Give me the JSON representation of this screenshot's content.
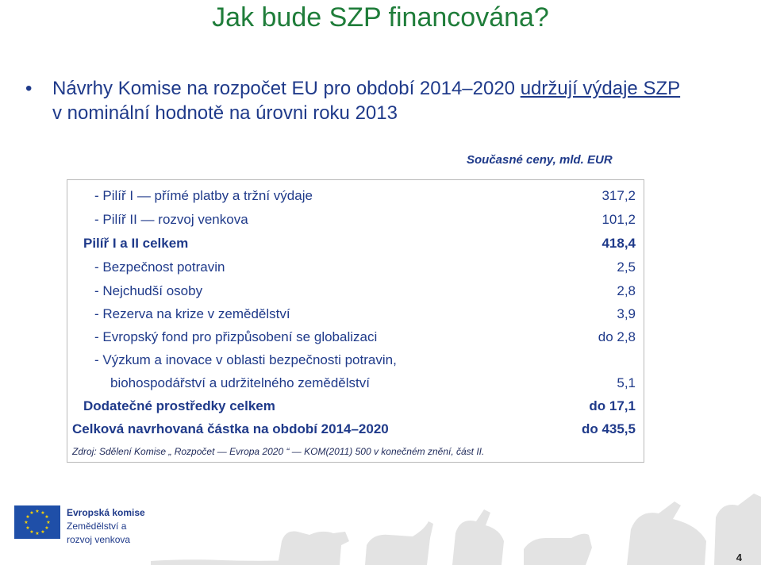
{
  "title": "Jak bude SZP financována?",
  "bullet": {
    "text_part1": "Návrhy Komise na rozpočet EU pro období 2014–2020 ",
    "text_underlined": "udržují výdaje SZP",
    "line2": "v nominální hodnotě na úrovni roku 2013"
  },
  "units": "Současné ceny, mld. EUR",
  "rows": [
    {
      "label": "- Pilíř I — přímé platby a tržní výdaje",
      "value": "317,2"
    },
    {
      "label": "- Pilíř II — rozvoj venkova",
      "value": "101,2"
    },
    {
      "label": "Pilíř I a II celkem",
      "value": "418,4"
    },
    {
      "label": "- Bezpečnost potravin",
      "value": "2,5"
    },
    {
      "label": "- Nejchudší osoby",
      "value": "2,8"
    },
    {
      "label": "- Rezerva na krize v zemědělství",
      "value": "3,9"
    },
    {
      "label": "- Evropský fond pro přizpůsobení se globalizaci",
      "value": "do 2,8"
    },
    {
      "label": "- Výzkum a inovace v oblasti bezpečnosti potravin,",
      "value": ""
    },
    {
      "label": "biohospodářství a udržitelného zemědělství",
      "value": "5,1"
    },
    {
      "label": "Dodatečné prostředky celkem",
      "value": "do 17,1"
    },
    {
      "label": "Celková navrhovaná částka na období 2014–2020",
      "value": "do 435,5"
    }
  ],
  "source": "Zdroj: Sdělení Komise „ Rozpočet — Evropa 2020 “ — KOM(2011) 500 v konečném znění, část II.",
  "logo": {
    "line1": "Evropská komise",
    "line2": "Zemědělství a",
    "line3": "rozvoj venkova"
  },
  "page_number": "4",
  "colors": {
    "title": "#1f7d3a",
    "text": "#1f3a8a",
    "border": "#b9b9b9"
  }
}
